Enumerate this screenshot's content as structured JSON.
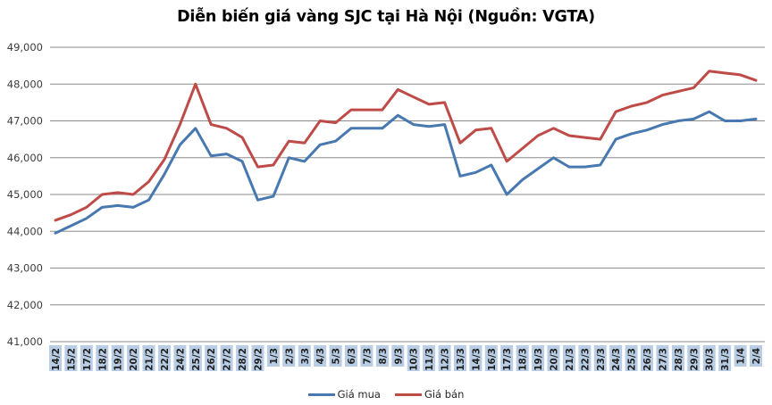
{
  "title": "Diễn biến giá vàng SJC tại Hà Nội (Nguồn: VGTA)",
  "chart_data": {
    "type": "line",
    "title": "Diễn biến giá vàng SJC tại Hà Nội (Nguồn: VGTA)",
    "xlabel": "",
    "ylabel": "",
    "grid": true,
    "legend_position": "bottom",
    "ylim": [
      41000,
      49000
    ],
    "ytick_step": 1000,
    "ytick_labels": [
      "41,000",
      "42,000",
      "43,000",
      "44,000",
      "45,000",
      "46,000",
      "47,000",
      "48,000",
      "49,000"
    ],
    "gridline_color": "#8c8c8c",
    "x_label_bg": "#b9cde5",
    "categories": [
      "14/2",
      "15/2",
      "17/2",
      "18/2",
      "19/2",
      "20/2",
      "21/2",
      "22/2",
      "24/2",
      "25/2",
      "26/2",
      "27/2",
      "28/2",
      "29/2",
      "1/3",
      "2/3",
      "3/3",
      "4/3",
      "5/3",
      "6/3",
      "7/3",
      "8/3",
      "9/3",
      "10/3",
      "11/3",
      "12/3",
      "13/3",
      "14/3",
      "16/3",
      "17/3",
      "18/3",
      "19/3",
      "20/3",
      "21/3",
      "22/3",
      "23/3",
      "24/3",
      "25/3",
      "26/3",
      "27/3",
      "28/3",
      "29/3",
      "30/3",
      "31/3",
      "1/4",
      "2/4"
    ],
    "series": [
      {
        "name": "Giá mua",
        "color": "#4878b0",
        "values": [
          43950,
          44150,
          44350,
          44650,
          44700,
          44650,
          44850,
          45550,
          46350,
          46800,
          46050,
          46100,
          45900,
          44850,
          44950,
          46000,
          45900,
          46350,
          46450,
          46800,
          46800,
          46800,
          47150,
          46900,
          46850,
          46900,
          45500,
          45600,
          45800,
          45000,
          45400,
          45700,
          46000,
          45750,
          45750,
          45800,
          46500,
          46650,
          46750,
          46900,
          47000,
          47050,
          47250,
          47000,
          47000,
          47050
        ]
      },
      {
        "name": "Giá bán",
        "color": "#be4b48",
        "values": [
          44300,
          44450,
          44650,
          45000,
          45050,
          45000,
          45350,
          45950,
          46900,
          48000,
          46900,
          46800,
          46550,
          45750,
          45800,
          46450,
          46400,
          47000,
          46950,
          47300,
          47300,
          47300,
          47850,
          47650,
          47450,
          47500,
          46400,
          46750,
          46800,
          45900,
          46250,
          46600,
          46800,
          46600,
          46550,
          46500,
          47250,
          47400,
          47500,
          47700,
          47800,
          47900,
          48350,
          48300,
          48250,
          48100
        ]
      }
    ]
  }
}
